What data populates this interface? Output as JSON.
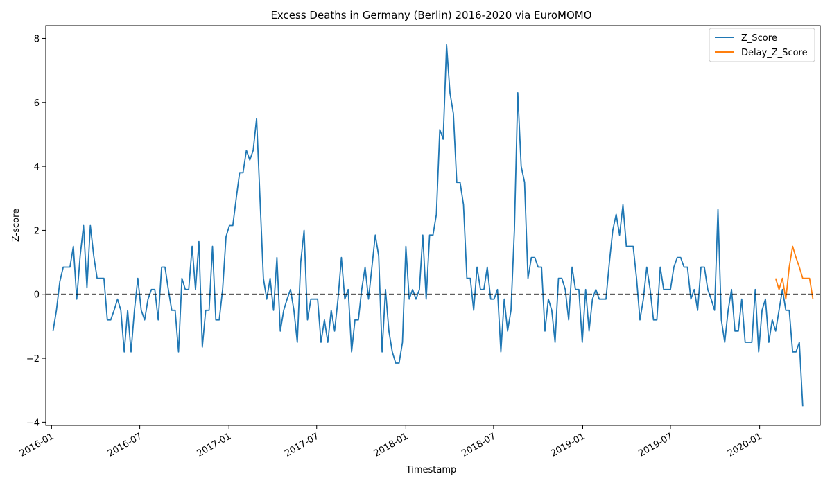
{
  "chart_data": {
    "type": "line",
    "title": "Excess Deaths in Germany (Berlin) 2016-2020 via EuroMOMO",
    "xlabel": "Timestamp",
    "ylabel": "Z-score",
    "xlim": [
      "2015-12-20",
      "2020-05-05"
    ],
    "ylim": [
      -4.1,
      8.4
    ],
    "x_ticks": [
      "2016-01",
      "2016-07",
      "2017-01",
      "2017-07",
      "2018-01",
      "2018-07",
      "2019-01",
      "2019-07",
      "2020-01"
    ],
    "y_ticks": [
      -4,
      -2,
      0,
      2,
      4,
      6,
      8
    ],
    "y_tick_labels": [
      "−4",
      "−2",
      "0",
      "2",
      "4",
      "6",
      "8"
    ],
    "reference_line": {
      "y": 0,
      "style": "dashed",
      "color": "#000000"
    },
    "grid": false,
    "legend": {
      "position": "top-right",
      "entries": [
        "Z_Score",
        "Delay_Z_Score"
      ]
    },
    "series": [
      {
        "name": "Z_Score",
        "color": "#1f77b4",
        "points": [
          [
            "2016-01-04",
            -1.15
          ],
          [
            "2016-01-11",
            -0.5
          ],
          [
            "2016-01-18",
            0.4
          ],
          [
            "2016-01-25",
            0.85
          ],
          [
            "2016-02-01",
            0.85
          ],
          [
            "2016-02-08",
            0.85
          ],
          [
            "2016-02-15",
            1.5
          ],
          [
            "2016-02-22",
            -0.15
          ],
          [
            "2016-02-29",
            1.2
          ],
          [
            "2016-03-07",
            2.15
          ],
          [
            "2016-03-14",
            0.2
          ],
          [
            "2016-03-21",
            2.15
          ],
          [
            "2016-03-28",
            1.2
          ],
          [
            "2016-04-04",
            0.5
          ],
          [
            "2016-04-11",
            0.5
          ],
          [
            "2016-04-18",
            0.5
          ],
          [
            "2016-04-25",
            -0.8
          ],
          [
            "2016-05-02",
            -0.8
          ],
          [
            "2016-05-09",
            -0.5
          ],
          [
            "2016-05-16",
            -0.15
          ],
          [
            "2016-05-23",
            -0.5
          ],
          [
            "2016-05-30",
            -1.8
          ],
          [
            "2016-06-06",
            -0.5
          ],
          [
            "2016-06-13",
            -1.8
          ],
          [
            "2016-06-20",
            -0.5
          ],
          [
            "2016-06-27",
            0.5
          ],
          [
            "2016-07-04",
            -0.5
          ],
          [
            "2016-07-11",
            -0.8
          ],
          [
            "2016-07-18",
            -0.15
          ],
          [
            "2016-07-25",
            0.15
          ],
          [
            "2016-08-01",
            0.15
          ],
          [
            "2016-08-08",
            -0.8
          ],
          [
            "2016-08-15",
            0.85
          ],
          [
            "2016-08-22",
            0.85
          ],
          [
            "2016-08-29",
            0.15
          ],
          [
            "2016-09-05",
            -0.5
          ],
          [
            "2016-09-12",
            -0.5
          ],
          [
            "2016-09-19",
            -1.8
          ],
          [
            "2016-09-26",
            0.5
          ],
          [
            "2016-10-03",
            0.15
          ],
          [
            "2016-10-10",
            0.15
          ],
          [
            "2016-10-17",
            1.5
          ],
          [
            "2016-10-24",
            0.15
          ],
          [
            "2016-10-31",
            1.65
          ],
          [
            "2016-11-07",
            -1.65
          ],
          [
            "2016-11-14",
            -0.5
          ],
          [
            "2016-11-21",
            -0.5
          ],
          [
            "2016-11-28",
            1.5
          ],
          [
            "2016-12-05",
            -0.8
          ],
          [
            "2016-12-12",
            -0.8
          ],
          [
            "2016-12-19",
            0.15
          ],
          [
            "2016-12-26",
            1.8
          ],
          [
            "2017-01-02",
            2.15
          ],
          [
            "2017-01-09",
            2.15
          ],
          [
            "2017-01-16",
            3.0
          ],
          [
            "2017-01-23",
            3.8
          ],
          [
            "2017-01-30",
            3.8
          ],
          [
            "2017-02-06",
            4.5
          ],
          [
            "2017-02-13",
            4.2
          ],
          [
            "2017-02-20",
            4.5
          ],
          [
            "2017-02-27",
            5.5
          ],
          [
            "2017-03-06",
            3.0
          ],
          [
            "2017-03-13",
            0.5
          ],
          [
            "2017-03-20",
            -0.15
          ],
          [
            "2017-03-27",
            0.5
          ],
          [
            "2017-04-03",
            -0.5
          ],
          [
            "2017-04-10",
            1.15
          ],
          [
            "2017-04-17",
            -1.15
          ],
          [
            "2017-04-24",
            -0.5
          ],
          [
            "2017-05-01",
            -0.15
          ],
          [
            "2017-05-08",
            0.15
          ],
          [
            "2017-05-15",
            -0.5
          ],
          [
            "2017-05-22",
            -1.5
          ],
          [
            "2017-05-29",
            1.0
          ],
          [
            "2017-06-05",
            2.0
          ],
          [
            "2017-06-12",
            -0.8
          ],
          [
            "2017-06-19",
            -0.15
          ],
          [
            "2017-06-26",
            -0.15
          ],
          [
            "2017-07-03",
            -0.15
          ],
          [
            "2017-07-10",
            -1.5
          ],
          [
            "2017-07-17",
            -0.8
          ],
          [
            "2017-07-24",
            -1.5
          ],
          [
            "2017-07-31",
            -0.5
          ],
          [
            "2017-08-07",
            -1.15
          ],
          [
            "2017-08-14",
            -0.15
          ],
          [
            "2017-08-21",
            1.15
          ],
          [
            "2017-08-28",
            -0.15
          ],
          [
            "2017-09-04",
            0.15
          ],
          [
            "2017-09-11",
            -1.8
          ],
          [
            "2017-09-18",
            -0.8
          ],
          [
            "2017-09-25",
            -0.8
          ],
          [
            "2017-10-02",
            0.15
          ],
          [
            "2017-10-09",
            0.85
          ],
          [
            "2017-10-16",
            -0.15
          ],
          [
            "2017-10-23",
            0.85
          ],
          [
            "2017-10-30",
            1.85
          ],
          [
            "2017-11-06",
            1.2
          ],
          [
            "2017-11-13",
            -1.8
          ],
          [
            "2017-11-20",
            0.15
          ],
          [
            "2017-11-27",
            -1.15
          ],
          [
            "2017-12-04",
            -1.8
          ],
          [
            "2017-12-11",
            -2.15
          ],
          [
            "2017-12-18",
            -2.15
          ],
          [
            "2017-12-25",
            -1.5
          ],
          [
            "2018-01-01",
            1.5
          ],
          [
            "2018-01-08",
            -0.15
          ],
          [
            "2018-01-15",
            0.15
          ],
          [
            "2018-01-22",
            -0.15
          ],
          [
            "2018-01-29",
            0.15
          ],
          [
            "2018-02-05",
            1.85
          ],
          [
            "2018-02-12",
            -0.15
          ],
          [
            "2018-02-19",
            1.85
          ],
          [
            "2018-02-26",
            1.85
          ],
          [
            "2018-03-05",
            2.5
          ],
          [
            "2018-03-12",
            5.15
          ],
          [
            "2018-03-19",
            4.85
          ],
          [
            "2018-03-26",
            7.8
          ],
          [
            "2018-04-02",
            6.3
          ],
          [
            "2018-04-09",
            5.65
          ],
          [
            "2018-04-16",
            3.5
          ],
          [
            "2018-04-23",
            3.5
          ],
          [
            "2018-04-30",
            2.8
          ],
          [
            "2018-05-07",
            0.5
          ],
          [
            "2018-05-14",
            0.5
          ],
          [
            "2018-05-21",
            -0.5
          ],
          [
            "2018-05-28",
            0.85
          ],
          [
            "2018-06-04",
            0.15
          ],
          [
            "2018-06-11",
            0.15
          ],
          [
            "2018-06-18",
            0.85
          ],
          [
            "2018-06-25",
            -0.15
          ],
          [
            "2018-07-02",
            -0.15
          ],
          [
            "2018-07-09",
            0.15
          ],
          [
            "2018-07-16",
            -1.8
          ],
          [
            "2018-07-23",
            -0.15
          ],
          [
            "2018-07-30",
            -1.15
          ],
          [
            "2018-08-06",
            -0.5
          ],
          [
            "2018-08-13",
            2.0
          ],
          [
            "2018-08-20",
            6.3
          ],
          [
            "2018-08-27",
            4.0
          ],
          [
            "2018-09-03",
            3.5
          ],
          [
            "2018-09-10",
            0.5
          ],
          [
            "2018-09-17",
            1.15
          ],
          [
            "2018-09-24",
            1.15
          ],
          [
            "2018-10-01",
            0.85
          ],
          [
            "2018-10-08",
            0.85
          ],
          [
            "2018-10-15",
            -1.15
          ],
          [
            "2018-10-22",
            -0.15
          ],
          [
            "2018-10-29",
            -0.5
          ],
          [
            "2018-11-05",
            -1.5
          ],
          [
            "2018-11-12",
            0.5
          ],
          [
            "2018-11-19",
            0.5
          ],
          [
            "2018-11-26",
            0.15
          ],
          [
            "2018-12-03",
            -0.8
          ],
          [
            "2018-12-10",
            0.85
          ],
          [
            "2018-12-17",
            0.15
          ],
          [
            "2018-12-24",
            0.15
          ],
          [
            "2018-12-31",
            -1.5
          ],
          [
            "2019-01-07",
            0.15
          ],
          [
            "2019-01-14",
            -1.15
          ],
          [
            "2019-01-21",
            -0.15
          ],
          [
            "2019-01-28",
            0.15
          ],
          [
            "2019-02-04",
            -0.15
          ],
          [
            "2019-02-11",
            -0.15
          ],
          [
            "2019-02-18",
            -0.15
          ],
          [
            "2019-02-25",
            1.0
          ],
          [
            "2019-03-04",
            2.0
          ],
          [
            "2019-03-11",
            2.5
          ],
          [
            "2019-03-18",
            1.85
          ],
          [
            "2019-03-25",
            2.8
          ],
          [
            "2019-04-01",
            1.5
          ],
          [
            "2019-04-08",
            1.5
          ],
          [
            "2019-04-15",
            1.5
          ],
          [
            "2019-04-22",
            0.5
          ],
          [
            "2019-04-29",
            -0.8
          ],
          [
            "2019-05-06",
            -0.15
          ],
          [
            "2019-05-13",
            0.85
          ],
          [
            "2019-05-20",
            0.15
          ],
          [
            "2019-05-27",
            -0.8
          ],
          [
            "2019-06-03",
            -0.8
          ],
          [
            "2019-06-10",
            0.85
          ],
          [
            "2019-06-17",
            0.15
          ],
          [
            "2019-06-24",
            0.15
          ],
          [
            "2019-07-01",
            0.15
          ],
          [
            "2019-07-08",
            0.85
          ],
          [
            "2019-07-15",
            1.15
          ],
          [
            "2019-07-22",
            1.15
          ],
          [
            "2019-07-29",
            0.85
          ],
          [
            "2019-08-05",
            0.85
          ],
          [
            "2019-08-12",
            -0.15
          ],
          [
            "2019-08-19",
            0.15
          ],
          [
            "2019-08-26",
            -0.5
          ],
          [
            "2019-09-02",
            0.85
          ],
          [
            "2019-09-09",
            0.85
          ],
          [
            "2019-09-16",
            0.15
          ],
          [
            "2019-09-23",
            -0.15
          ],
          [
            "2019-09-30",
            -0.5
          ],
          [
            "2019-10-07",
            2.65
          ],
          [
            "2019-10-14",
            -0.8
          ],
          [
            "2019-10-21",
            -1.5
          ],
          [
            "2019-10-28",
            -0.5
          ],
          [
            "2019-11-04",
            0.15
          ],
          [
            "2019-11-11",
            -1.15
          ],
          [
            "2019-11-18",
            -1.15
          ],
          [
            "2019-11-25",
            -0.15
          ],
          [
            "2019-12-02",
            -1.5
          ],
          [
            "2019-12-09",
            -1.5
          ],
          [
            "2019-12-16",
            -1.5
          ],
          [
            "2019-12-23",
            0.15
          ],
          [
            "2019-12-30",
            -1.8
          ],
          [
            "2020-01-06",
            -0.5
          ],
          [
            "2020-01-13",
            -0.15
          ],
          [
            "2020-01-20",
            -1.5
          ],
          [
            "2020-01-27",
            -0.8
          ],
          [
            "2020-02-03",
            -1.15
          ],
          [
            "2020-02-10",
            -0.5
          ],
          [
            "2020-02-17",
            0.15
          ],
          [
            "2020-02-24",
            -0.5
          ],
          [
            "2020-03-02",
            -0.5
          ],
          [
            "2020-03-09",
            -1.8
          ],
          [
            "2020-03-16",
            -1.8
          ],
          [
            "2020-03-23",
            -1.5
          ],
          [
            "2020-03-30",
            -3.5
          ]
        ]
      },
      {
        "name": "Delay_Z_Score",
        "color": "#ff7f0e",
        "points": [
          [
            "2020-02-03",
            0.5
          ],
          [
            "2020-02-10",
            0.15
          ],
          [
            "2020-02-17",
            0.5
          ],
          [
            "2020-02-24",
            -0.15
          ],
          [
            "2020-03-02",
            0.85
          ],
          [
            "2020-03-09",
            1.5
          ],
          [
            "2020-03-16",
            1.15
          ],
          [
            "2020-03-23",
            0.85
          ],
          [
            "2020-03-30",
            0.5
          ],
          [
            "2020-04-06",
            0.5
          ],
          [
            "2020-04-13",
            0.5
          ],
          [
            "2020-04-20",
            -0.15
          ]
        ]
      }
    ]
  }
}
